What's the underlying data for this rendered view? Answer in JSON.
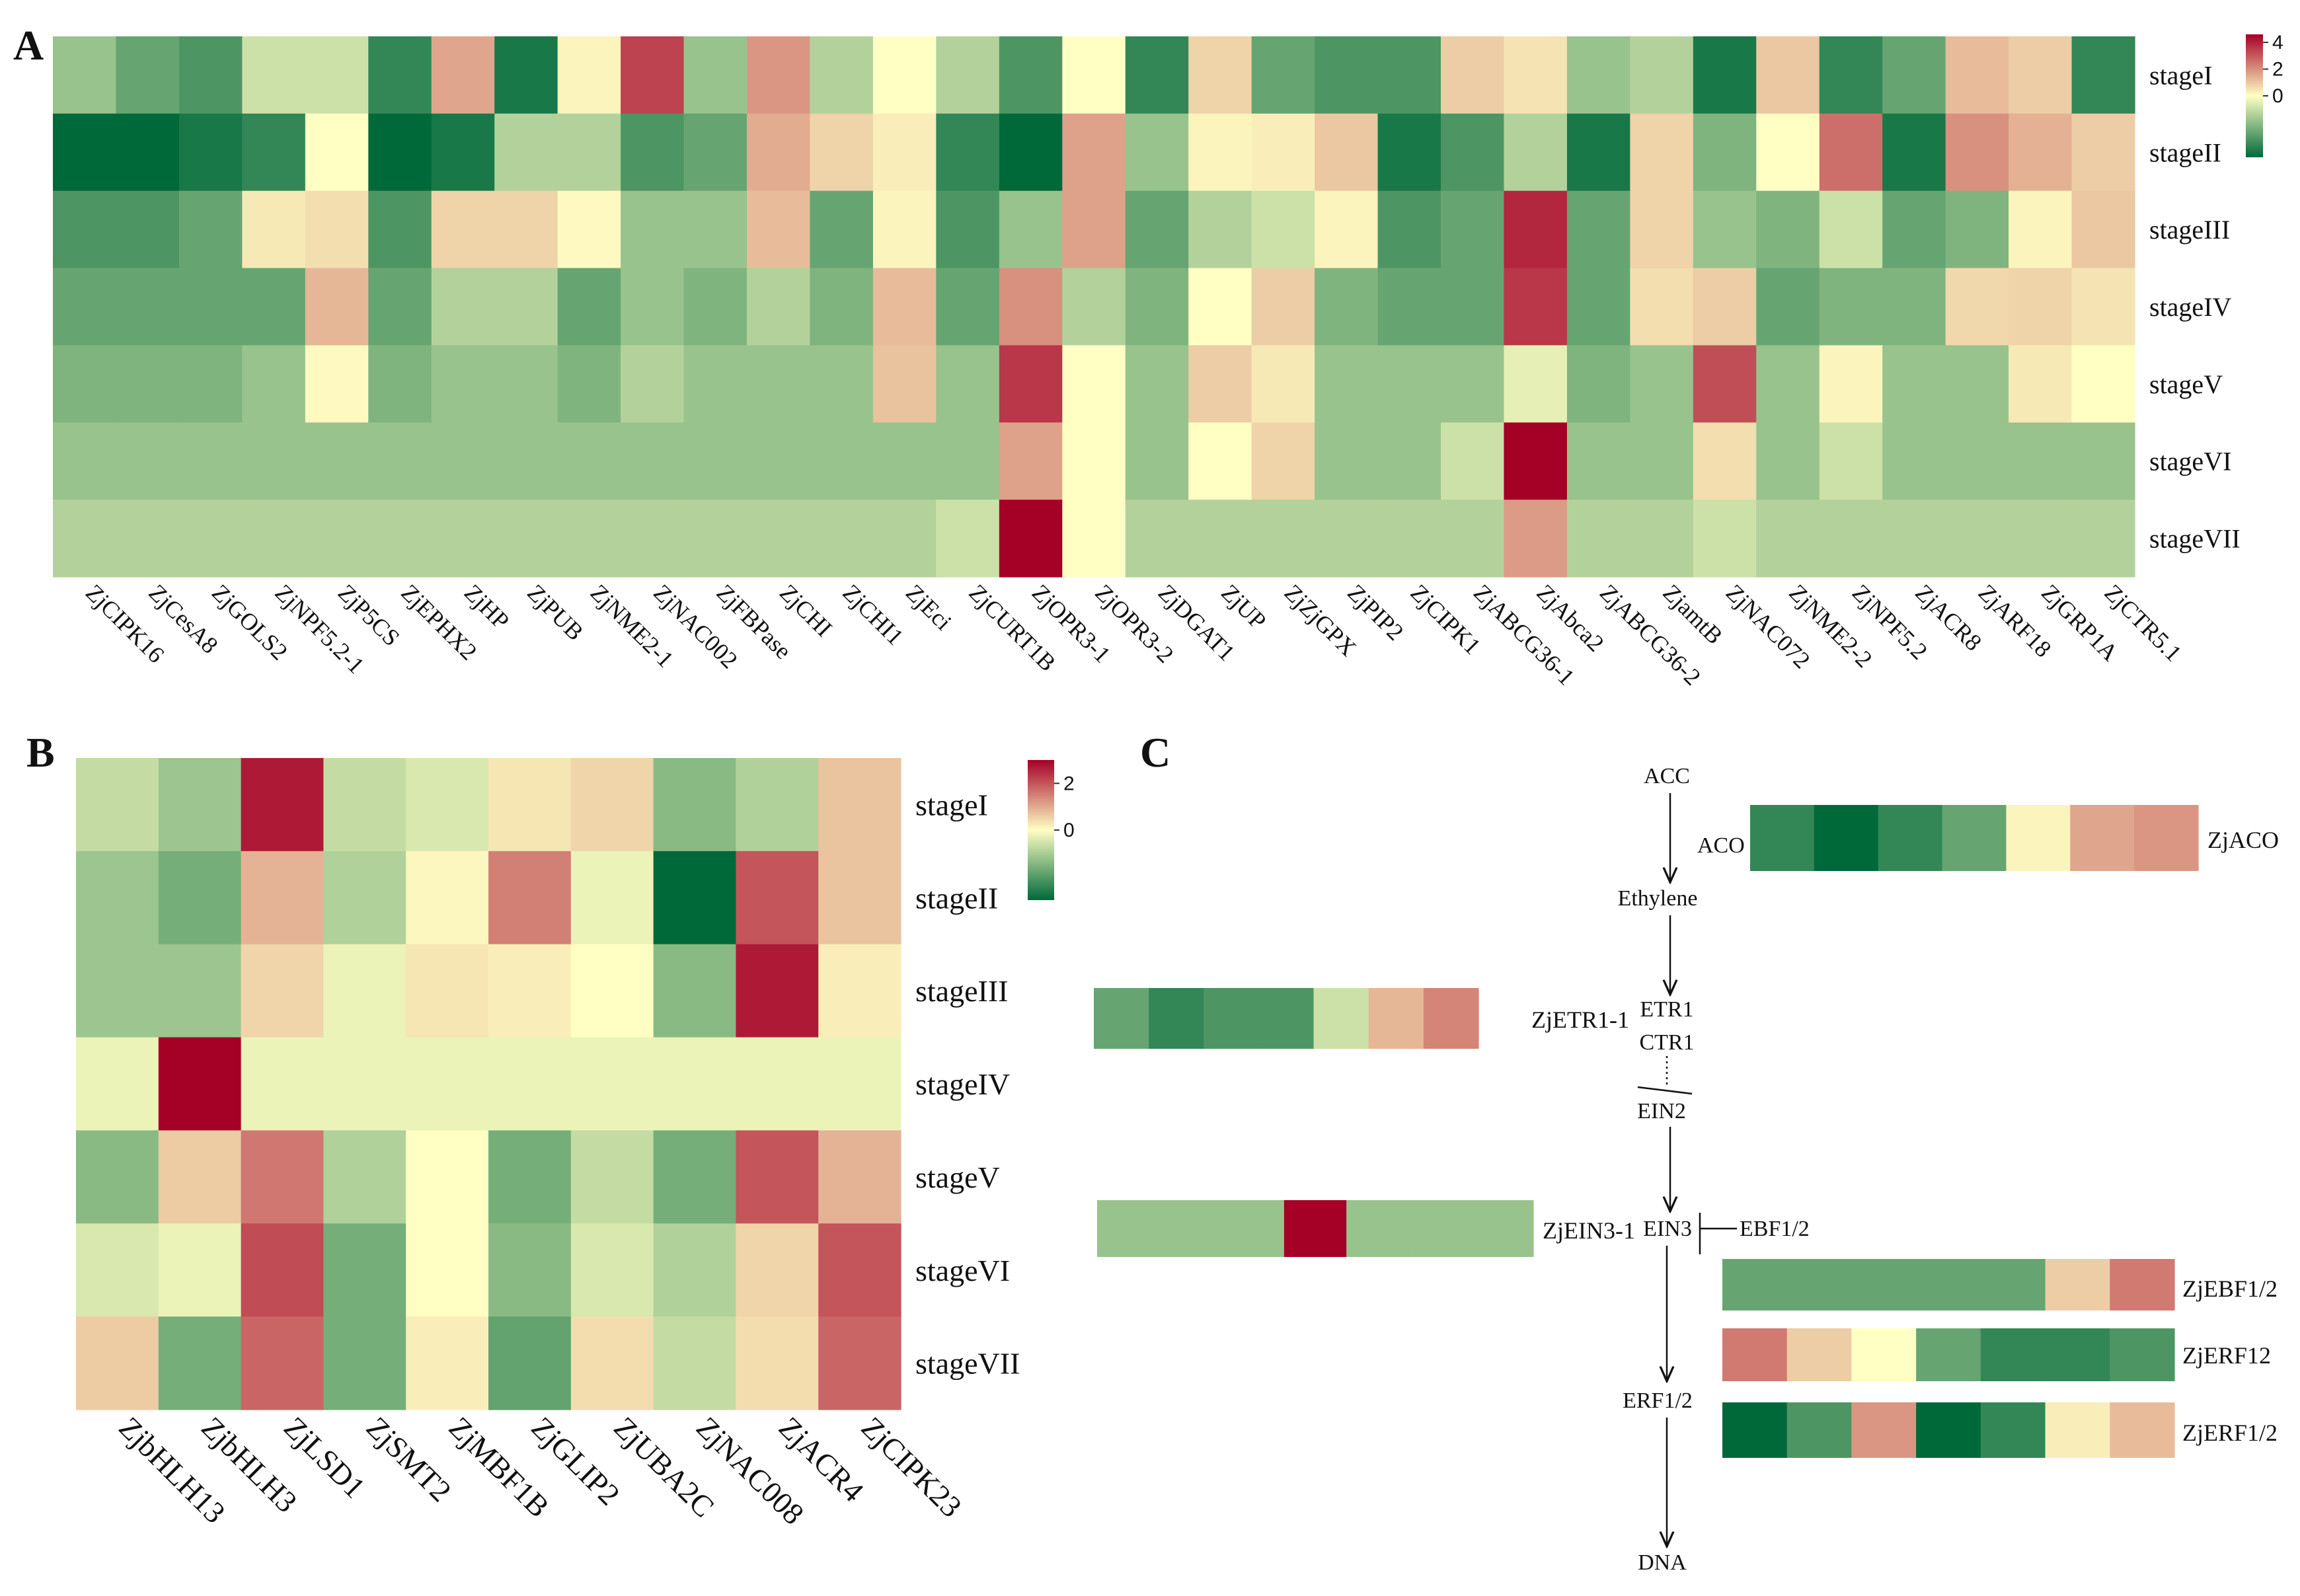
{
  "panel_letters": {
    "a": "A",
    "b": "B",
    "c": "C"
  },
  "colors": {
    "low": "#00693a",
    "mid": "#ffffc4",
    "high": "#a50026"
  },
  "chart_data": [
    {
      "type": "heatmap",
      "panel": "A",
      "rows": [
        "stageI",
        "stageII",
        "stageIII",
        "stageIV",
        "stageV",
        "stageVI",
        "stageVII"
      ],
      "cols": [
        "ZjCIPK16",
        "ZjCesA8",
        "ZjGOLS2",
        "ZjNPF5.2-1",
        "ZjP5CS",
        "ZjEPHX2",
        "ZjHP",
        "ZjPUB",
        "ZjNME2-1",
        "ZjNAC002",
        "ZjFBPase",
        "ZjCHI",
        "ZjCHI1",
        "ZjEci",
        "ZjCURT1B",
        "ZjOPR3-1",
        "ZjOPR3-2",
        "ZjDGAT1",
        "ZjUP",
        "ZjZjGPX",
        "ZjPIP2",
        "ZjCIPK1",
        "ZjABCG36-1",
        "ZjAbca2",
        "ZjABCG36-2",
        "ZjamtB",
        "ZjNAC072",
        "ZjNME2-2",
        "ZjNPF5.2",
        "ZjACR8",
        "ZjARF18",
        "ZjGRP1A",
        "ZjCTR5.1"
      ],
      "values": [
        [
          -0.4,
          -0.6,
          -0.7,
          -0.2,
          -0.2,
          -0.8,
          1.6,
          -0.9,
          0.2,
          3.4,
          -0.4,
          1.9,
          -0.3,
          0.0,
          -0.3,
          -0.7,
          0.0,
          -0.8,
          0.8,
          -0.6,
          -0.7,
          -0.7,
          0.9,
          0.5,
          -0.4,
          -0.3,
          -0.9,
          1.0,
          -0.8,
          -0.6,
          1.2,
          0.9,
          -0.8
        ],
        [
          -1.0,
          -1.0,
          -0.9,
          -0.8,
          0.0,
          -1.0,
          -0.9,
          -0.3,
          -0.3,
          -0.7,
          -0.6,
          1.5,
          0.8,
          0.3,
          -0.8,
          -1.0,
          1.7,
          -0.4,
          0.2,
          0.3,
          1.0,
          -0.9,
          -0.7,
          -0.3,
          -0.9,
          0.8,
          -0.5,
          0.0,
          2.6,
          -0.9,
          2.0,
          1.4,
          0.9
        ],
        [
          -0.7,
          -0.7,
          -0.6,
          0.4,
          0.6,
          -0.7,
          0.8,
          0.8,
          0.1,
          -0.4,
          -0.4,
          1.2,
          -0.6,
          0.2,
          -0.7,
          -0.4,
          1.7,
          -0.6,
          -0.3,
          -0.2,
          0.2,
          -0.7,
          -0.6,
          3.9,
          -0.6,
          0.8,
          -0.4,
          -0.5,
          -0.2,
          -0.6,
          -0.5,
          0.2,
          1.0
        ],
        [
          -0.6,
          -0.6,
          -0.6,
          -0.6,
          1.3,
          -0.6,
          -0.3,
          -0.3,
          -0.6,
          -0.4,
          -0.5,
          -0.3,
          -0.5,
          1.2,
          -0.6,
          2.0,
          -0.3,
          -0.5,
          0.0,
          0.9,
          -0.5,
          -0.6,
          -0.6,
          3.6,
          -0.6,
          0.6,
          0.9,
          -0.6,
          -0.5,
          -0.5,
          0.7,
          0.8,
          0.5
        ],
        [
          -0.5,
          -0.5,
          -0.5,
          -0.4,
          0.1,
          -0.5,
          -0.4,
          -0.4,
          -0.5,
          -0.3,
          -0.4,
          -0.4,
          -0.4,
          1.1,
          -0.4,
          3.6,
          0.0,
          -0.4,
          0.9,
          0.4,
          -0.4,
          -0.4,
          -0.4,
          -0.1,
          -0.5,
          -0.4,
          3.2,
          -0.4,
          0.2,
          -0.4,
          -0.4,
          0.4,
          0.0
        ],
        [
          -0.4,
          -0.4,
          -0.4,
          -0.4,
          -0.4,
          -0.4,
          -0.4,
          -0.4,
          -0.4,
          -0.4,
          -0.4,
          -0.4,
          -0.4,
          -0.4,
          -0.4,
          1.7,
          0.0,
          -0.4,
          0.0,
          0.8,
          -0.4,
          -0.4,
          -0.2,
          4.6,
          -0.4,
          -0.4,
          0.6,
          -0.4,
          -0.2,
          -0.4,
          -0.4,
          -0.4,
          -0.4
        ],
        [
          -0.3,
          -0.3,
          -0.3,
          -0.3,
          -0.3,
          -0.3,
          -0.3,
          -0.3,
          -0.3,
          -0.3,
          -0.3,
          -0.3,
          -0.3,
          -0.3,
          -0.2,
          4.6,
          0.0,
          -0.3,
          -0.3,
          -0.3,
          -0.3,
          -0.3,
          -0.3,
          1.8,
          -0.3,
          -0.3,
          -0.2,
          -0.3,
          -0.3,
          -0.3,
          -0.3,
          -0.3,
          -0.3
        ]
      ],
      "colorbar": {
        "min": -1.0,
        "max": 4.6,
        "ticks": [
          4,
          2,
          0
        ],
        "tick_labels": [
          "4",
          "2",
          "0"
        ]
      }
    },
    {
      "type": "heatmap",
      "panel": "B",
      "rows": [
        "stageI",
        "stageII",
        "stageIII",
        "stageIV",
        "stageV",
        "stageVI",
        "stageVII"
      ],
      "cols": [
        "ZjbHLH13",
        "ZjbHLH3",
        "ZjLSD1",
        "ZjSMT2",
        "ZjMBF1B",
        "ZjGLIP2",
        "ZjUBA2C",
        "ZjNAC008",
        "ZjACR4",
        "ZjCIPK23"
      ],
      "values": [
        [
          -0.3,
          -0.5,
          2.7,
          -0.3,
          -0.2,
          0.3,
          0.5,
          -0.6,
          -0.4,
          0.7
        ],
        [
          -0.5,
          -0.7,
          0.9,
          -0.4,
          0.1,
          1.5,
          -0.1,
          -1.3,
          2.0,
          0.7
        ],
        [
          -0.5,
          -0.5,
          0.5,
          -0.1,
          0.3,
          0.2,
          0.0,
          -0.6,
          2.7,
          0.2
        ],
        [
          -0.1,
          3.0,
          -0.1,
          -0.1,
          -0.1,
          -0.1,
          -0.1,
          -0.1,
          -0.1,
          -0.1
        ],
        [
          -0.6,
          0.6,
          1.6,
          -0.4,
          0.0,
          -0.7,
          -0.3,
          -0.7,
          2.0,
          0.9
        ],
        [
          -0.2,
          -0.1,
          2.1,
          -0.7,
          0.0,
          -0.6,
          -0.2,
          -0.4,
          0.5,
          2.0
        ],
        [
          0.6,
          -0.7,
          1.8,
          -0.7,
          0.2,
          -0.8,
          0.4,
          -0.3,
          0.4,
          1.8
        ]
      ],
      "colorbar": {
        "min": -1.3,
        "max": 3.0,
        "ticks": [
          2,
          0
        ],
        "tick_labels": [
          "2",
          "0"
        ]
      }
    }
  ],
  "pathway": {
    "nodes": {
      "acc": "ACC",
      "aco": "ACO",
      "ethylene": "Ethylene",
      "etr1": "ETR1",
      "ctr1": "CTR1",
      "ein2": "EIN2",
      "ein3": "EIN3",
      "ebf": "EBF1/2",
      "erf": "ERF1/2",
      "dna": "DNA"
    },
    "genes": [
      {
        "key": "aco",
        "label": "ZjACO",
        "values": [
          -0.8,
          -1.0,
          -0.8,
          -0.6,
          0.2,
          1.6,
          1.9
        ]
      },
      {
        "key": "etr",
        "label": "ZjETR1-1",
        "values": [
          -0.6,
          -0.8,
          -0.7,
          -0.7,
          -0.2,
          1.3,
          2.2
        ]
      },
      {
        "key": "ein3",
        "label": "ZjEIN3-1",
        "values": [
          -0.4,
          -0.4,
          -0.4,
          4.6,
          -0.4,
          -0.4,
          -0.4
        ]
      },
      {
        "key": "ebf",
        "label": "ZjEBF1/2",
        "values": [
          -0.6,
          -0.6,
          -0.6,
          -0.6,
          -0.6,
          0.9,
          2.4
        ]
      },
      {
        "key": "erf12",
        "label": "ZjERF12",
        "values": [
          2.4,
          0.9,
          0.0,
          -0.6,
          -0.8,
          -0.8,
          -0.7
        ]
      },
      {
        "key": "erf",
        "label": "ZjERF1/2",
        "values": [
          -1.0,
          -0.7,
          1.9,
          -1.0,
          -0.8,
          0.3,
          1.2
        ]
      }
    ]
  }
}
